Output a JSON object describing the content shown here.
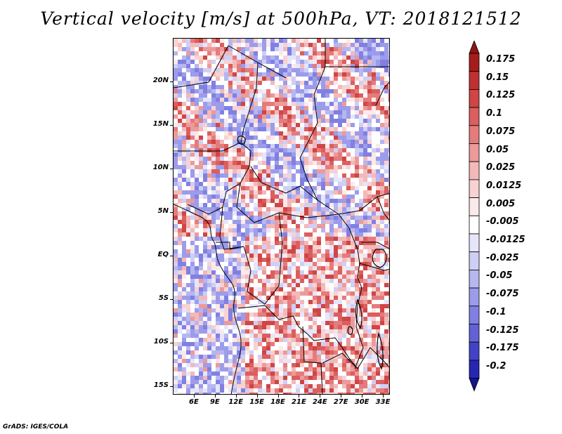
{
  "title": "Vertical velocity [m/s] at 500hPa, VT: 2018121512",
  "footer": "GrADS: IGES/COLA",
  "map": {
    "region": "Central Africa",
    "lon_range": [
      3,
      34
    ],
    "lat_range": [
      -16,
      25
    ],
    "lat_labels": [
      {
        "text": "20N",
        "value": 20
      },
      {
        "text": "15N",
        "value": 15
      },
      {
        "text": "10N",
        "value": 10
      },
      {
        "text": "5N",
        "value": 5
      },
      {
        "text": "EQ",
        "value": 0
      },
      {
        "text": "5S",
        "value": -5
      },
      {
        "text": "10S",
        "value": -10
      },
      {
        "text": "15S",
        "value": -15
      }
    ],
    "lon_labels": [
      {
        "text": "6E",
        "value": 6
      },
      {
        "text": "9E",
        "value": 9
      },
      {
        "text": "12E",
        "value": 12
      },
      {
        "text": "15E",
        "value": 15
      },
      {
        "text": "18E",
        "value": 18
      },
      {
        "text": "21E",
        "value": 21
      },
      {
        "text": "24E",
        "value": 24
      },
      {
        "text": "27E",
        "value": 27
      },
      {
        "text": "30E",
        "value": 30
      },
      {
        "text": "33E",
        "value": 33
      }
    ]
  },
  "colorbar": {
    "levels": [
      {
        "label": "0.175",
        "color": "#a61c1c"
      },
      {
        "label": "0.15",
        "color": "#c03030"
      },
      {
        "label": "0.125",
        "color": "#d04545"
      },
      {
        "label": "0.1",
        "color": "#dc5e5e"
      },
      {
        "label": "0.075",
        "color": "#e47c7c"
      },
      {
        "label": "0.05",
        "color": "#ec9a9a"
      },
      {
        "label": "0.025",
        "color": "#f3b9b9"
      },
      {
        "label": "0.0125",
        "color": "#f8d2d2"
      },
      {
        "label": "0.005",
        "color": "#fce9e9"
      },
      {
        "label": "-0.005",
        "color": "#ffffff"
      },
      {
        "label": "-0.0125",
        "color": "#e6e6fb"
      },
      {
        "label": "-0.025",
        "color": "#cfcff6"
      },
      {
        "label": "-0.05",
        "color": "#b6b6f1"
      },
      {
        "label": "-0.075",
        "color": "#9c9ceb"
      },
      {
        "label": "-0.1",
        "color": "#8080e2"
      },
      {
        "label": "-0.125",
        "color": "#6262d6"
      },
      {
        "label": "-0.175",
        "color": "#4343c8"
      },
      {
        "label": "-0.2",
        "color": "#2626b4"
      }
    ],
    "top_arrow_color": "#8f1515",
    "bottom_arrow_color": "#14148f"
  }
}
